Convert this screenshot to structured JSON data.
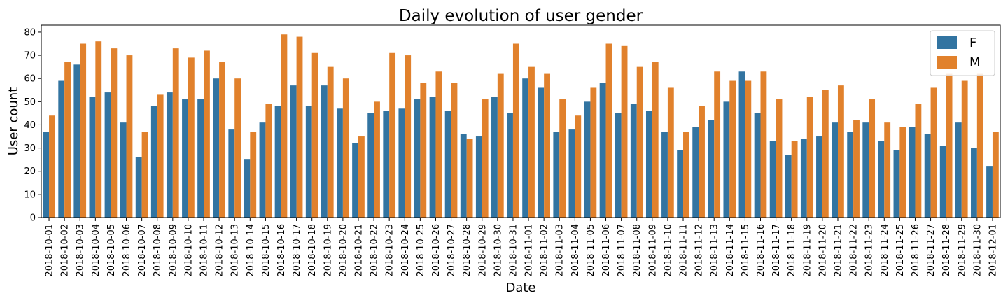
{
  "chart_data": {
    "type": "bar",
    "title": "Daily evolution of user gender",
    "xlabel": "Date",
    "ylabel": "User count",
    "ylim": [
      0,
      83
    ],
    "yticks": [
      0,
      10,
      20,
      30,
      40,
      50,
      60,
      70,
      80
    ],
    "grid": false,
    "legend_position": "top-right",
    "categories": [
      "2018-10-01",
      "2018-10-02",
      "2018-10-03",
      "2018-10-04",
      "2018-10-05",
      "2018-10-06",
      "2018-10-07",
      "2018-10-08",
      "2018-10-09",
      "2018-10-10",
      "2018-10-11",
      "2018-10-12",
      "2018-10-13",
      "2018-10-14",
      "2018-10-15",
      "2018-10-16",
      "2018-10-17",
      "2018-10-18",
      "2018-10-19",
      "2018-10-20",
      "2018-10-21",
      "2018-10-22",
      "2018-10-23",
      "2018-10-24",
      "2018-10-25",
      "2018-10-26",
      "2018-10-27",
      "2018-10-28",
      "2018-10-29",
      "2018-10-30",
      "2018-10-31",
      "2018-11-01",
      "2018-11-02",
      "2018-11-03",
      "2018-11-04",
      "2018-11-05",
      "2018-11-06",
      "2018-11-07",
      "2018-11-08",
      "2018-11-09",
      "2018-11-10",
      "2018-11-11",
      "2018-11-12",
      "2018-11-13",
      "2018-11-14",
      "2018-11-15",
      "2018-11-16",
      "2018-11-17",
      "2018-11-18",
      "2018-11-19",
      "2018-11-20",
      "2018-11-21",
      "2018-11-22",
      "2018-11-23",
      "2018-11-24",
      "2018-11-25",
      "2018-11-26",
      "2018-11-27",
      "2018-11-28",
      "2018-11-29",
      "2018-11-30",
      "2018-12-01"
    ],
    "series": [
      {
        "name": "F",
        "color": "#3274a1",
        "values": [
          37,
          59,
          66,
          52,
          54,
          41,
          26,
          48,
          54,
          51,
          51,
          60,
          38,
          25,
          41,
          48,
          57,
          48,
          57,
          47,
          32,
          45,
          46,
          47,
          51,
          52,
          46,
          36,
          35,
          52,
          45,
          60,
          56,
          37,
          38,
          50,
          58,
          45,
          49,
          46,
          37,
          29,
          39,
          42,
          50,
          63,
          45,
          33,
          27,
          34,
          35,
          41,
          37,
          41,
          33,
          29,
          39,
          36,
          31,
          41,
          30,
          22
        ]
      },
      {
        "name": "M",
        "color": "#e1812c",
        "values": [
          44,
          67,
          75,
          76,
          73,
          70,
          37,
          53,
          73,
          69,
          72,
          67,
          60,
          37,
          49,
          79,
          78,
          71,
          65,
          60,
          35,
          50,
          71,
          70,
          58,
          63,
          58,
          34,
          51,
          62,
          75,
          65,
          62,
          51,
          44,
          56,
          75,
          74,
          65,
          67,
          56,
          37,
          48,
          63,
          59,
          59,
          63,
          51,
          33,
          52,
          55,
          57,
          42,
          51,
          41,
          39,
          49,
          56,
          62,
          59,
          62,
          37
        ]
      }
    ]
  }
}
